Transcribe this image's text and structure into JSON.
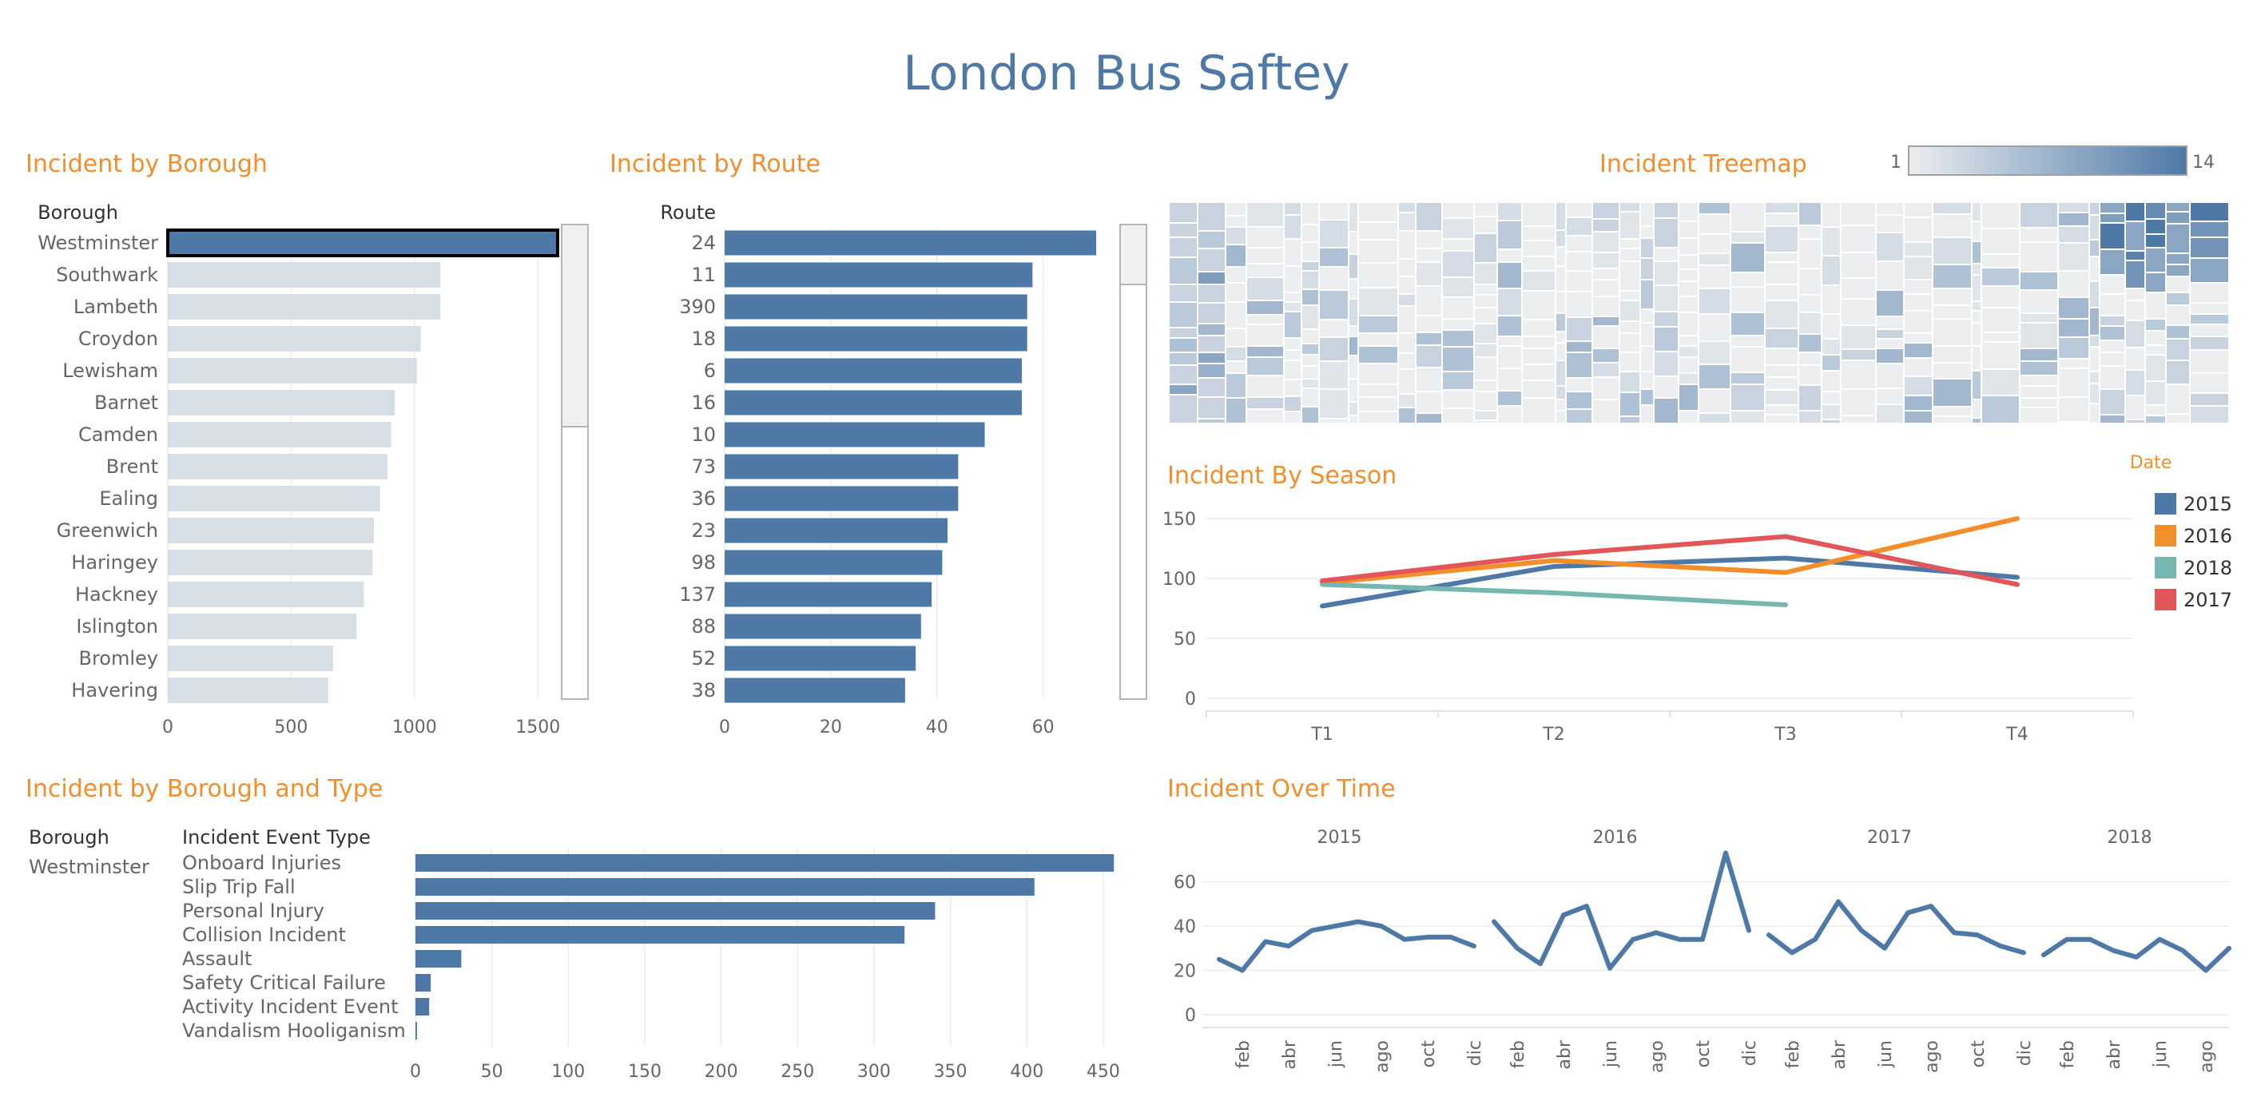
{
  "dashboard": {
    "title": "London Bus Saftey"
  },
  "colors": {
    "accent": "#4e79a7",
    "title_orange": "#f28e2b",
    "light_bar": "#d6dee6",
    "s2015": "#4e79a7",
    "s2016": "#f28e2b",
    "s2018": "#76b7b2",
    "s2017": "#e15759"
  },
  "chart_data": [
    {
      "id": "borough",
      "type": "bar",
      "title": "Incident by Borough",
      "header": "Borough",
      "categories": [
        "Westminster",
        "Southwark",
        "Lambeth",
        "Croydon",
        "Lewisham",
        "Barnet",
        "Camden",
        "Brent",
        "Ealing",
        "Greenwich",
        "Haringey",
        "Hackney",
        "Islington",
        "Bromley",
        "Havering"
      ],
      "values": [
        1580,
        1105,
        1105,
        1025,
        1010,
        920,
        905,
        890,
        860,
        835,
        830,
        795,
        765,
        670,
        650
      ],
      "selected": "Westminster",
      "xticks": [
        0,
        500,
        1000,
        1500
      ],
      "xlim": [
        0,
        1700
      ]
    },
    {
      "id": "route",
      "type": "bar",
      "title": "Incident by Route",
      "header": "Route",
      "categories": [
        "24",
        "11",
        "390",
        "18",
        "6",
        "16",
        "10",
        "73",
        "36",
        "23",
        "98",
        "137",
        "88",
        "52",
        "38"
      ],
      "values": [
        70,
        58,
        57,
        57,
        56,
        56,
        49,
        44,
        44,
        42,
        41,
        39,
        37,
        36,
        34
      ],
      "xticks": [
        0,
        20,
        40,
        60
      ],
      "xlim": [
        0,
        73
      ]
    },
    {
      "id": "treemap",
      "type": "heatmap",
      "title": "Incident Treemap",
      "legend": {
        "min_label": "1",
        "max_label": "14",
        "min": 1,
        "max": 14
      }
    },
    {
      "id": "season",
      "type": "line",
      "title": "Incident By Season",
      "legend_title": "Date",
      "categories": [
        "T1",
        "T2",
        "T3",
        "T4"
      ],
      "series": [
        {
          "name": "2015",
          "values": [
            77,
            110,
            117,
            101
          ],
          "color": "#4e79a7"
        },
        {
          "name": "2016",
          "values": [
            96,
            115,
            105,
            150
          ],
          "color": "#f28e2b"
        },
        {
          "name": "2018",
          "values": [
            95,
            88,
            78,
            null
          ],
          "color": "#76b7b2"
        },
        {
          "name": "2017",
          "values": [
            98,
            120,
            135,
            95
          ],
          "color": "#e15759"
        }
      ],
      "yticks": [
        0,
        50,
        100,
        150
      ],
      "ylim": [
        0,
        160
      ]
    },
    {
      "id": "borough_type",
      "type": "bar",
      "title": "Incident by Borough and Type",
      "header_borough": "Borough",
      "header_type": "Incident Event Type",
      "borough": "Westminster",
      "categories": [
        "Onboard Injuries",
        "Slip Trip Fall",
        "Personal Injury",
        "Collision Incident",
        "Assault",
        "Safety Critical Failure",
        "Activity Incident Event",
        "Vandalism Hooliganism"
      ],
      "values": [
        457,
        405,
        340,
        320,
        30,
        10,
        9,
        1
      ],
      "xticks": [
        0,
        50,
        100,
        150,
        200,
        250,
        300,
        350,
        400,
        450
      ],
      "xlim": [
        0,
        460
      ]
    },
    {
      "id": "over_time",
      "type": "line",
      "title": "Incident Over Time",
      "years": [
        "2015",
        "2016",
        "2017",
        "2018"
      ],
      "month_labels": [
        "feb",
        "abr",
        "jun",
        "ago",
        "oct",
        "dic"
      ],
      "series": [
        {
          "name": "2015",
          "values": [
            25,
            20,
            33,
            31,
            38,
            40,
            42,
            40,
            34,
            35,
            35,
            31
          ]
        },
        {
          "name": "2016",
          "values": [
            42,
            30,
            23,
            45,
            49,
            21,
            34,
            37,
            34,
            34,
            73,
            38
          ]
        },
        {
          "name": "2017",
          "values": [
            36,
            28,
            34,
            51,
            38,
            30,
            46,
            49,
            37,
            36,
            31,
            28
          ]
        },
        {
          "name": "2018",
          "values": [
            27,
            34,
            34,
            29,
            26,
            34,
            29,
            20,
            30
          ]
        }
      ],
      "yticks": [
        0,
        20,
        40,
        60
      ],
      "ylim": [
        0,
        75
      ]
    }
  ]
}
